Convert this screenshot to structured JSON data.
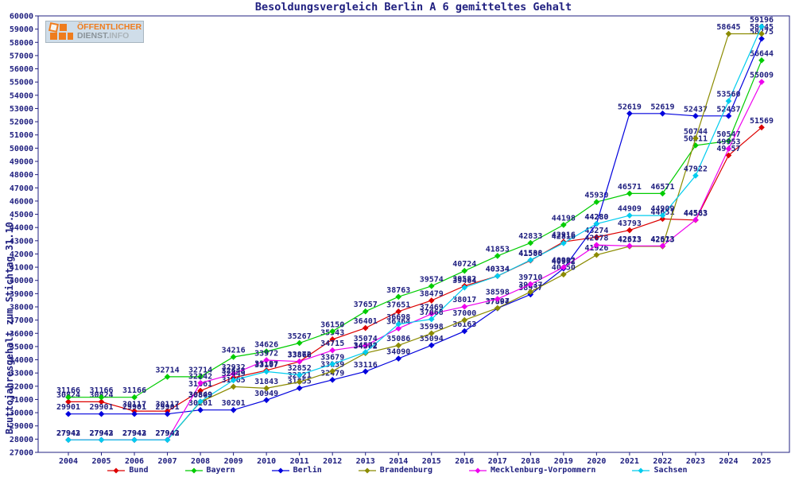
{
  "logo": {
    "line1": "ÖFFENTLICHER",
    "line2_bold": "DIENST.",
    "line2_rest": "INFO"
  },
  "chart_data": {
    "type": "line",
    "title": "Besoldungsvergleich Berlin A 6 gemitteltes Gehalt",
    "ylabel": "Bruttojahresgehalt zum Stichtag 31.10.",
    "xlabel": "",
    "ylim": [
      27000,
      60000
    ],
    "ytick_step": 1000,
    "grid": false,
    "legend_position": "bottom",
    "point_labels": true,
    "text_color": "#202080",
    "categories": [
      2004,
      2005,
      2006,
      2007,
      2008,
      2009,
      2010,
      2011,
      2012,
      2013,
      2014,
      2015,
      2016,
      2017,
      2018,
      2019,
      2020,
      2021,
      2022,
      2023,
      2024,
      2025
    ],
    "series": [
      {
        "name": "Bund",
        "color": "#dd0000",
        "values": [
          30824,
          30824,
          30117,
          30117,
          31661,
          32648,
          33197,
          33866,
          35543,
          36401,
          37651,
          38479,
          39582,
          40334,
          41506,
          42916,
          43274,
          43793,
          44651,
          44563,
          49457,
          51569
        ]
      },
      {
        "name": "Bayern",
        "color": "#00cc00",
        "values": [
          31166,
          31166,
          31166,
          32714,
          32714,
          34216,
          34626,
          35267,
          36150,
          37657,
          38763,
          39574,
          40724,
          41853,
          42833,
          44198,
          45930,
          46571,
          46571,
          50211,
          50547,
          56644
        ]
      },
      {
        "name": "Berlin",
        "color": "#0000dd",
        "values": [
          29901,
          29901,
          29901,
          29901,
          30201,
          30201,
          30949,
          31855,
          32479,
          33116,
          34090,
          35094,
          36163,
          37894,
          38937,
          40902,
          44280,
          52619,
          52619,
          52437,
          52437,
          58275
        ]
      },
      {
        "name": "Brandenburg",
        "color": "#8b8b00",
        "values": [
          27942,
          27942,
          27942,
          27942,
          30809,
          31965,
          31843,
          32321,
          33139,
          34502,
          35086,
          35998,
          37000,
          37907,
          39137,
          40450,
          41926,
          42573,
          42573,
          50744,
          58645,
          58645
        ]
      },
      {
        "name": "Mecklenburg-Vorpommern",
        "color": "#ee00ee",
        "values": [
          27943,
          27943,
          27943,
          27943,
          32242,
          32932,
          33972,
          33872,
          34715,
          35074,
          36364,
          37469,
          38017,
          38598,
          39710,
          40992,
          42678,
          42613,
          42613,
          44583,
          49953,
          55009
        ]
      },
      {
        "name": "Sachsen",
        "color": "#00ccee",
        "values": [
          27942,
          27942,
          27942,
          27942,
          30849,
          32449,
          33107,
          32852,
          33679,
          34572,
          36698,
          37068,
          39464,
          40334,
          41538,
          42816,
          44280,
          44909,
          44909,
          47922,
          53560,
          59196
        ]
      }
    ]
  }
}
